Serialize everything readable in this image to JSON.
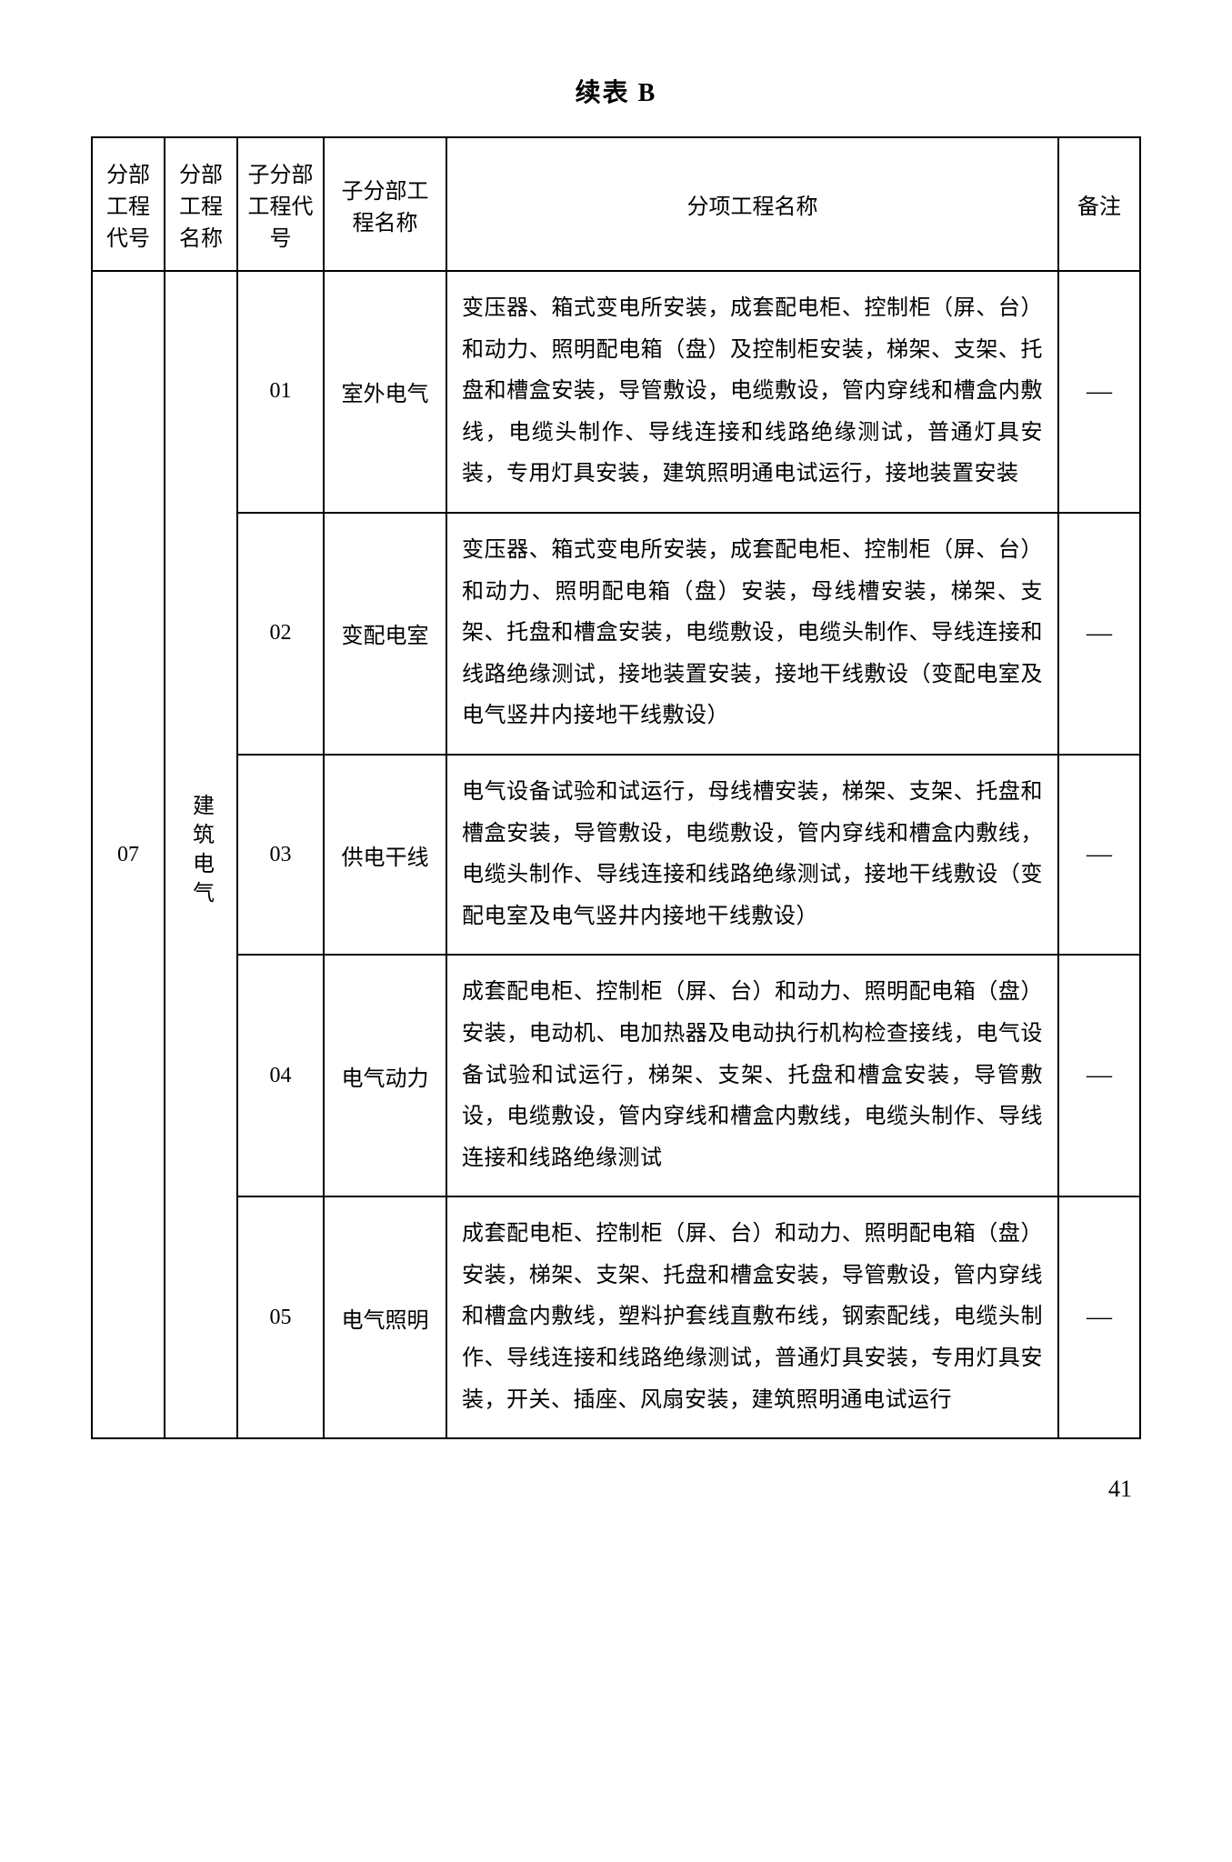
{
  "title": "续表 B",
  "columns": [
    "分部工程代号",
    "分部工程名称",
    "子分部工程代号",
    "子分部工程名称",
    "分项工程名称",
    "备注"
  ],
  "section_code": "07",
  "section_name": "建筑电气",
  "rows": [
    {
      "sub_code": "01",
      "sub_name": "室外电气",
      "desc": "变压器、箱式变电所安装，成套配电柜、控制柜（屏、台）和动力、照明配电箱（盘）及控制柜安装，梯架、支架、托盘和槽盒安装，导管敷设，电缆敷设，管内穿线和槽盒内敷线，电缆头制作、导线连接和线路绝缘测试，普通灯具安装，专用灯具安装，建筑照明通电试运行，接地装置安装",
      "note": "—"
    },
    {
      "sub_code": "02",
      "sub_name": "变配电室",
      "desc": "变压器、箱式变电所安装，成套配电柜、控制柜（屏、台）和动力、照明配电箱（盘）安装，母线槽安装，梯架、支架、托盘和槽盒安装，电缆敷设，电缆头制作、导线连接和线路绝缘测试，接地装置安装，接地干线敷设（变配电室及电气竖井内接地干线敷设）",
      "note": "—"
    },
    {
      "sub_code": "03",
      "sub_name": "供电干线",
      "desc": "电气设备试验和试运行，母线槽安装，梯架、支架、托盘和槽盒安装，导管敷设，电缆敷设，管内穿线和槽盒内敷线，电缆头制作、导线连接和线路绝缘测试，接地干线敷设（变配电室及电气竖井内接地干线敷设）",
      "note": "—"
    },
    {
      "sub_code": "04",
      "sub_name": "电气动力",
      "desc": "成套配电柜、控制柜（屏、台）和动力、照明配电箱（盘）安装，电动机、电加热器及电动执行机构检查接线，电气设备试验和试运行，梯架、支架、托盘和槽盒安装，导管敷设，电缆敷设，管内穿线和槽盒内敷线，电缆头制作、导线连接和线路绝缘测试",
      "note": "—"
    },
    {
      "sub_code": "05",
      "sub_name": "电气照明",
      "desc": "成套配电柜、控制柜（屏、台）和动力、照明配电箱（盘）安装，梯架、支架、托盘和槽盒安装，导管敷设，管内穿线和槽盒内敷线，塑料护套线直敷布线，钢索配线，电缆头制作、导线连接和线路绝缘测试，普通灯具安装，专用灯具安装，开关、插座、风扇安装，建筑照明通电试运行",
      "note": "—"
    }
  ],
  "page_number": "41",
  "style": {
    "border_color": "#000000",
    "background": "#ffffff",
    "text_color": "#000000",
    "title_fontsize": 28,
    "cell_fontsize": 24,
    "line_height": 1.9
  }
}
